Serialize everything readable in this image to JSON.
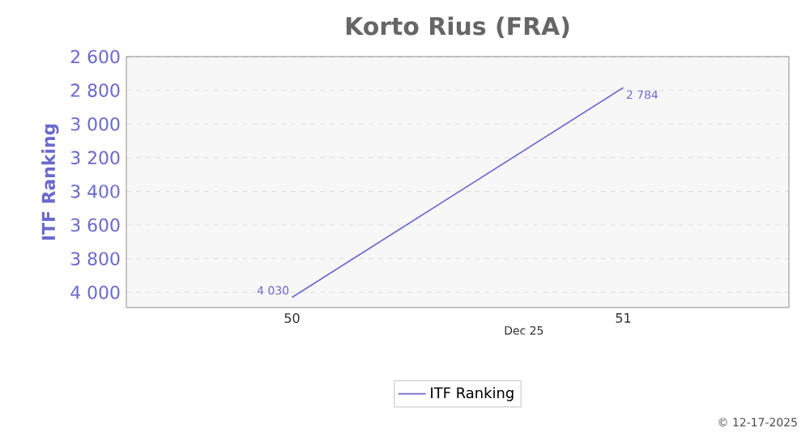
{
  "chart_data": {
    "type": "line",
    "title": "Korto Rius (FRA)",
    "ylabel": "ITF Ranking",
    "xlabel": "Dec 25",
    "categories": [
      "50",
      "51"
    ],
    "series": [
      {
        "name": "ITF Ranking",
        "color": "#6a6acd",
        "values": [
          4030,
          2784
        ],
        "value_labels": [
          "4 030",
          "2 784"
        ]
      }
    ],
    "ylim": [
      4090,
      2600
    ],
    "yticks": [
      {
        "value": 2600,
        "label": "2 600"
      },
      {
        "value": 2800,
        "label": "2 800"
      },
      {
        "value": 3000,
        "label": "3 000"
      },
      {
        "value": 3200,
        "label": "3 200"
      },
      {
        "value": 3400,
        "label": "3 400"
      },
      {
        "value": 3600,
        "label": "3 600"
      },
      {
        "value": 3800,
        "label": "3 800"
      },
      {
        "value": 4000,
        "label": "4 000"
      }
    ],
    "grid": "y",
    "legend": "bottom",
    "marker": "none",
    "line_style": "solid",
    "annotations": [
      "© 12-17-2025"
    ]
  }
}
